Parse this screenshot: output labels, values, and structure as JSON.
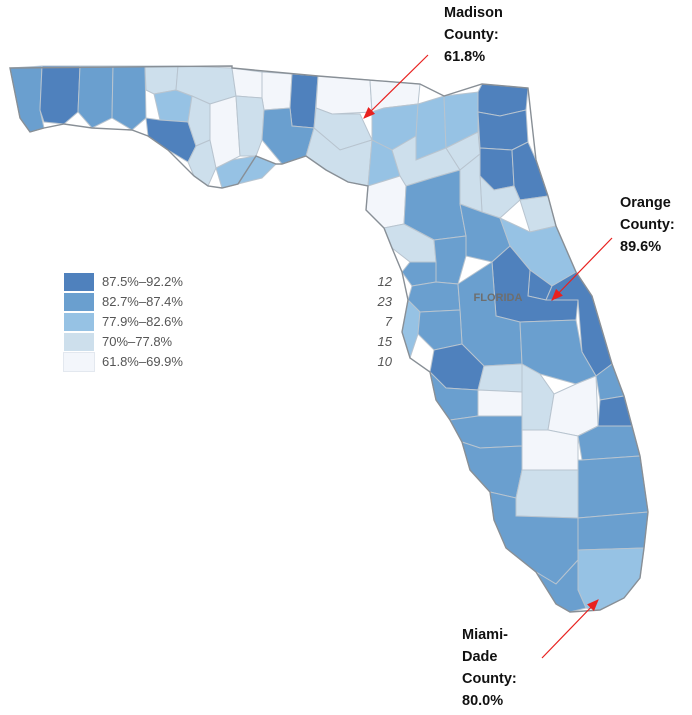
{
  "map": {
    "state_label": "FLORIDA"
  },
  "legend": [
    {
      "range": "87.5%–92.2%",
      "count": "12",
      "color": "#4f81bd"
    },
    {
      "range": "82.7%–87.4%",
      "count": "23",
      "color": "#6a9fcf"
    },
    {
      "range": "77.9%–82.6%",
      "count": "7",
      "color": "#96c2e4"
    },
    {
      "range": "70%–77.8%",
      "count": "15",
      "color": "#cddfec"
    },
    {
      "range": "61.8%–69.9%",
      "count": "10",
      "color": "#f3f6fb"
    }
  ],
  "callouts": {
    "madison": {
      "line1": "Madison",
      "line2": "County:",
      "line3": "61.8%"
    },
    "orange": {
      "line1": "Orange",
      "line2": "County:",
      "line3": "89.6%"
    },
    "miami": {
      "line1": "Miami-",
      "line2": "Dade",
      "line3": "County:",
      "line4": "80.0%"
    }
  },
  "colors": {
    "arrow": "#e8211f",
    "border": "#9aa7b4"
  }
}
